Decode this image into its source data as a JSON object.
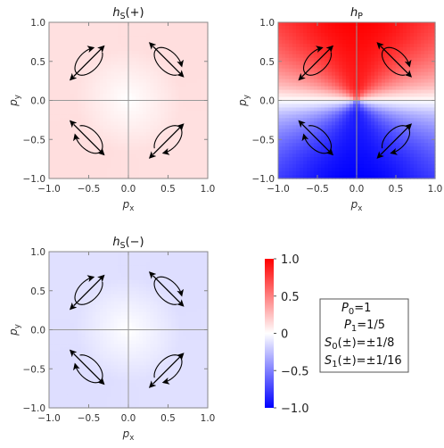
{
  "colors": {
    "positive": "#ff0000",
    "negative": "#0000ff",
    "zero": "#ffffff",
    "frame": "#888888",
    "axisline": "#999999"
  },
  "chart_data": [
    {
      "type": "heatmap",
      "title": {
        "h": "h",
        "sub": "S",
        "rest": "(+)"
      },
      "xlabel": {
        "base": "p",
        "sub": "x"
      },
      "ylabel": {
        "base": "p",
        "sub": "y"
      },
      "xlim": [
        -1,
        1
      ],
      "ylim": [
        -1,
        1
      ],
      "xticks": [
        "−1.0",
        "−0.5",
        "0.0",
        "0.5",
        "1.0"
      ],
      "yticks": [
        "1.0",
        "0.5",
        "0.0",
        "−0.5",
        "−1.0"
      ],
      "field": {
        "mode": "hs",
        "sign": 1
      },
      "loops": [
        {
          "x": -0.5,
          "y": 0.5,
          "tilt": 1,
          "ccw": true
        },
        {
          "x": 0.5,
          "y": 0.5,
          "tilt": -1,
          "ccw": true
        },
        {
          "x": -0.5,
          "y": -0.5,
          "tilt": -1,
          "ccw": false
        },
        {
          "x": 0.5,
          "y": -0.5,
          "tilt": 1,
          "ccw": false
        }
      ]
    },
    {
      "type": "heatmap",
      "title": {
        "h": "h",
        "sub": "P",
        "rest": ""
      },
      "xlabel": {
        "base": "p",
        "sub": "x"
      },
      "ylabel": {
        "base": "p",
        "sub": "y"
      },
      "xlim": [
        -1,
        1
      ],
      "ylim": [
        -1,
        1
      ],
      "xticks": [
        "−1.0",
        "−0.5",
        "0.0",
        "0.5",
        "1.0"
      ],
      "yticks": [
        "1.0",
        "0.5",
        "0.0",
        "−0.5",
        "−1.0"
      ],
      "field": {
        "mode": "hp",
        "sign": 1
      },
      "loops": [
        {
          "x": -0.5,
          "y": 0.5,
          "tilt": 1,
          "ccw": true
        },
        {
          "x": 0.5,
          "y": 0.5,
          "tilt": -1,
          "ccw": true
        },
        {
          "x": -0.5,
          "y": -0.5,
          "tilt": -1,
          "ccw": false
        },
        {
          "x": 0.5,
          "y": -0.5,
          "tilt": 1,
          "ccw": false
        }
      ]
    },
    {
      "type": "heatmap",
      "title": {
        "h": "h",
        "sub": "S",
        "rest": "(−)"
      },
      "xlabel": {
        "base": "p",
        "sub": "x"
      },
      "ylabel": {
        "base": "p",
        "sub": "y"
      },
      "xlim": [
        -1,
        1
      ],
      "ylim": [
        -1,
        1
      ],
      "xticks": [
        "−1.0",
        "−0.5",
        "0.0",
        "0.5",
        "1.0"
      ],
      "yticks": [
        "1.0",
        "0.5",
        "0.0",
        "−0.5",
        "−1.0"
      ],
      "field": {
        "mode": "hs",
        "sign": -1
      },
      "loops": [
        {
          "x": -0.5,
          "y": 0.5,
          "tilt": 1,
          "ccw": true
        },
        {
          "x": 0.5,
          "y": 0.5,
          "tilt": -1,
          "ccw": true
        },
        {
          "x": -0.5,
          "y": -0.5,
          "tilt": -1,
          "ccw": false
        },
        {
          "x": 0.5,
          "y": -0.5,
          "tilt": 1,
          "ccw": false
        }
      ]
    }
  ],
  "colorbar": {
    "range": [
      -1,
      1
    ],
    "ticks": [
      {
        "value": 1.0,
        "label": "1.0"
      },
      {
        "value": 0.5,
        "label": "0.5"
      },
      {
        "value": 0.0,
        "label": "0"
      },
      {
        "value": -0.5,
        "label": "−0.5"
      },
      {
        "value": -1.0,
        "label": "−1.0"
      }
    ]
  },
  "parameters": [
    {
      "base": "P",
      "sub": "0",
      "rest": "=1"
    },
    {
      "base": "P",
      "sub": "1",
      "rest": "=1/5"
    },
    {
      "base": "S",
      "sub": "0",
      "rest": "(±)=±1/8"
    },
    {
      "base": "S",
      "sub": "1",
      "rest": "(±)=±1/16"
    }
  ]
}
